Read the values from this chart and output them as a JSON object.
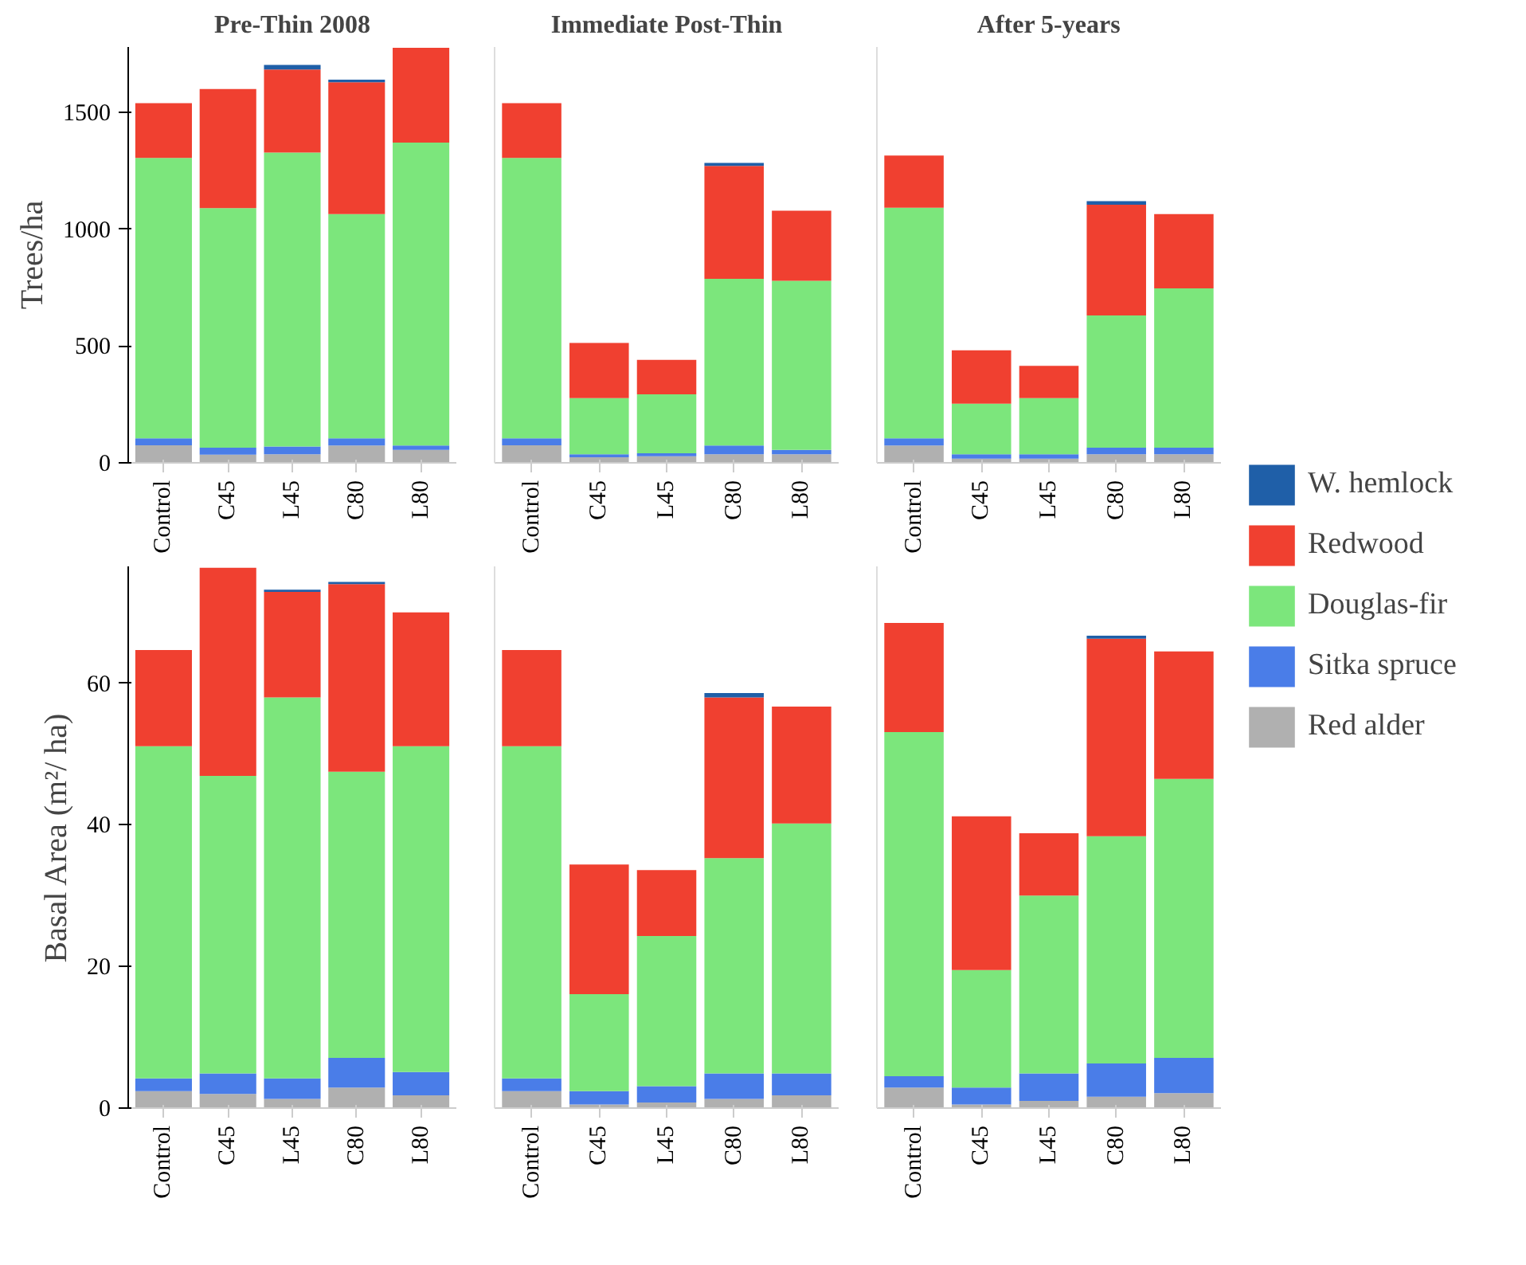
{
  "chart_data": [
    {
      "type": "bar",
      "stacked": true,
      "title": "Pre-Thin 2008",
      "ylabel": "Trees/ha",
      "categories": [
        "Control",
        "C45",
        "L45",
        "C80",
        "L80"
      ],
      "ylim": [
        0,
        1780
      ],
      "yticks": [
        0,
        500,
        1000,
        1500
      ],
      "legend": "right",
      "series": [
        {
          "name": "Red alder",
          "color": "#b0b0b0",
          "values": [
            75,
            35,
            37,
            74,
            55
          ]
        },
        {
          "name": "Sitka spruce",
          "color": "#4a7de8",
          "values": [
            30,
            30,
            33,
            31,
            19
          ]
        },
        {
          "name": "Douglas-fir",
          "color": "#7ce67c",
          "values": [
            1200,
            1025,
            1258,
            960,
            1297
          ]
        },
        {
          "name": "Redwood",
          "color": "#f04030",
          "values": [
            235,
            510,
            356,
            564,
            406
          ]
        },
        {
          "name": "W. hemlock",
          "color": "#1f5fa8",
          "values": [
            0,
            0,
            19,
            11,
            0
          ]
        }
      ]
    },
    {
      "type": "bar",
      "stacked": true,
      "title": "Immediate Post-Thin",
      "categories": [
        "Control",
        "C45",
        "L45",
        "C80",
        "L80"
      ],
      "ylim": [
        0,
        1780
      ],
      "yticks": [
        0,
        500,
        1000,
        1500
      ],
      "tick_labels": "x",
      "series": [
        {
          "color": "#b0b0b0",
          "values": [
            75,
            24,
            28,
            37,
            37
          ]
        },
        {
          "color": "#4a7de8",
          "values": [
            30,
            13,
            13,
            37,
            18
          ]
        },
        {
          "color": "#7ce67c",
          "values": [
            1200,
            240,
            252,
            714,
            724
          ]
        },
        {
          "color": "#f04030",
          "values": [
            235,
            236,
            148,
            483,
            300
          ]
        },
        {
          "color": "#1f5fa8",
          "values": [
            0,
            0,
            0,
            13,
            0
          ]
        }
      ]
    },
    {
      "type": "bar",
      "stacked": true,
      "title": "After 5-years",
      "categories": [
        "Control",
        "C45",
        "L45",
        "C80",
        "L80"
      ],
      "ylim": [
        0,
        1780
      ],
      "yticks": [
        0,
        500,
        1000,
        1500
      ],
      "tick_labels": "x",
      "series": [
        {
          "color": "#b0b0b0",
          "values": [
            74,
            18,
            18,
            37,
            37
          ]
        },
        {
          "color": "#4a7de8",
          "values": [
            31,
            19,
            19,
            28,
            28
          ]
        },
        {
          "color": "#7ce67c",
          "values": [
            987,
            216,
            240,
            566,
            682
          ]
        },
        {
          "color": "#f04030",
          "values": [
            223,
            229,
            138,
            474,
            318
          ]
        },
        {
          "color": "#1f5fa8",
          "values": [
            0,
            0,
            0,
            15,
            0
          ]
        }
      ]
    },
    {
      "type": "bar",
      "stacked": true,
      "ylabel": "Basal Area (m²/ ha)",
      "categories": [
        "Control",
        "C45",
        "L45",
        "C80",
        "L80"
      ],
      "ylim": [
        0,
        76.5
      ],
      "yticks": [
        0,
        20,
        40,
        60
      ],
      "series": [
        {
          "color": "#b0b0b0",
          "values": [
            2.4,
            2.0,
            1.3,
            2.9,
            1.8
          ]
        },
        {
          "color": "#4a7de8",
          "values": [
            1.8,
            2.9,
            2.9,
            4.2,
            3.3
          ]
        },
        {
          "color": "#7ce67c",
          "values": [
            46.9,
            42.0,
            53.8,
            40.4,
            46.0
          ]
        },
        {
          "color": "#f04030",
          "values": [
            13.6,
            29.4,
            14.9,
            26.5,
            18.9
          ]
        },
        {
          "color": "#1f5fa8",
          "values": [
            0,
            0,
            0.3,
            0.3,
            0
          ]
        }
      ]
    },
    {
      "type": "bar",
      "stacked": true,
      "categories": [
        "Control",
        "C45",
        "L45",
        "C80",
        "L80"
      ],
      "ylim": [
        0,
        76.5
      ],
      "yticks": [
        0,
        20,
        40,
        60
      ],
      "tick_labels": "x",
      "series": [
        {
          "color": "#b0b0b0",
          "values": [
            2.4,
            0.5,
            0.8,
            1.3,
            1.8
          ]
        },
        {
          "color": "#4a7de8",
          "values": [
            1.8,
            1.9,
            2.3,
            3.6,
            3.1
          ]
        },
        {
          "color": "#7ce67c",
          "values": [
            46.9,
            13.7,
            21.2,
            30.4,
            35.3
          ]
        },
        {
          "color": "#f04030",
          "values": [
            13.6,
            18.3,
            9.3,
            22.7,
            16.5
          ]
        },
        {
          "color": "#1f5fa8",
          "values": [
            0,
            0,
            0,
            0.6,
            0
          ]
        }
      ]
    },
    {
      "type": "bar",
      "stacked": true,
      "categories": [
        "Control",
        "C45",
        "L45",
        "C80",
        "L80"
      ],
      "ylim": [
        0,
        76.5
      ],
      "yticks": [
        0,
        20,
        40,
        60
      ],
      "tick_labels": "x",
      "series": [
        {
          "color": "#b0b0b0",
          "values": [
            2.9,
            0.5,
            1.0,
            1.6,
            2.1
          ]
        },
        {
          "color": "#4a7de8",
          "values": [
            1.6,
            2.4,
            3.9,
            4.7,
            5.0
          ]
        },
        {
          "color": "#7ce67c",
          "values": [
            48.6,
            16.6,
            25.1,
            32.1,
            39.4
          ]
        },
        {
          "color": "#f04030",
          "values": [
            15.4,
            21.7,
            8.8,
            27.9,
            18.0
          ]
        },
        {
          "color": "#1f5fa8",
          "values": [
            0,
            0,
            0,
            0.4,
            0
          ]
        }
      ]
    }
  ]
}
